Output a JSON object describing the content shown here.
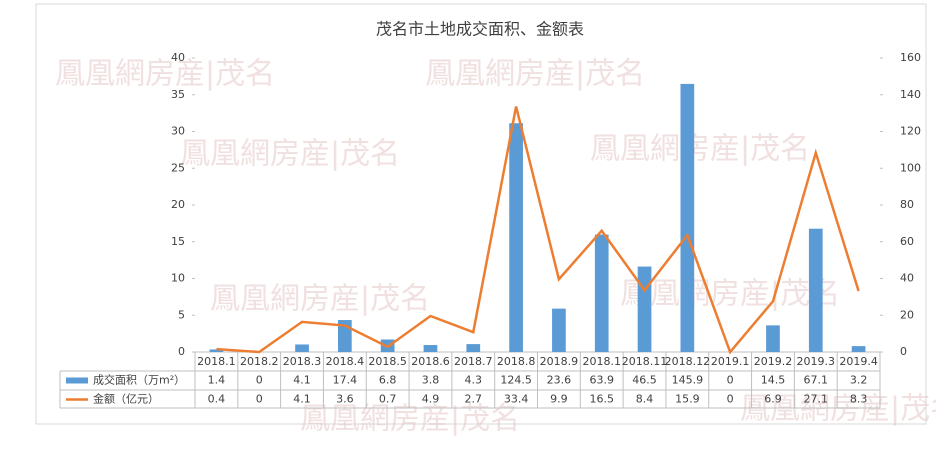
{
  "chart_data": {
    "type": "bar",
    "title": "茂名市土地成交面积、金额表",
    "watermark": "鳳凰網房産|茂名",
    "categories": [
      "2018.1",
      "2018.2",
      "2018.3",
      "2018.4",
      "2018.5",
      "2018.6",
      "2018.7",
      "2018.8",
      "2018.9",
      "2018.1",
      "2018.11",
      "2018.12",
      "2019.1",
      "2019.2",
      "2019.3",
      "2019.4"
    ],
    "series": [
      {
        "name": "成交面积（万m²）",
        "type": "bar",
        "axis": "y2",
        "color": "#5b9bd5",
        "values": [
          1.4,
          0,
          4.1,
          17.4,
          6.8,
          3.8,
          4.3,
          124.5,
          23.6,
          63.9,
          46.5,
          145.9,
          0,
          14.5,
          67.1,
          3.2
        ]
      },
      {
        "name": "金额（亿元）",
        "type": "line",
        "color": "#ed7d31",
        "values": [
          0.4,
          0,
          4.1,
          3.6,
          0.7,
          4.9,
          2.7,
          33.4,
          9.9,
          16.5,
          8.4,
          15.9,
          0,
          6.9,
          27.1,
          8.3
        ]
      }
    ],
    "ylim": [
      0,
      40
    ],
    "yticks": [
      0,
      5,
      10,
      15,
      20,
      25,
      30,
      35,
      40
    ],
    "y2lim": [
      0,
      160
    ],
    "y2ticks": [
      0,
      20,
      40,
      60,
      80,
      100,
      120,
      140,
      160
    ]
  }
}
